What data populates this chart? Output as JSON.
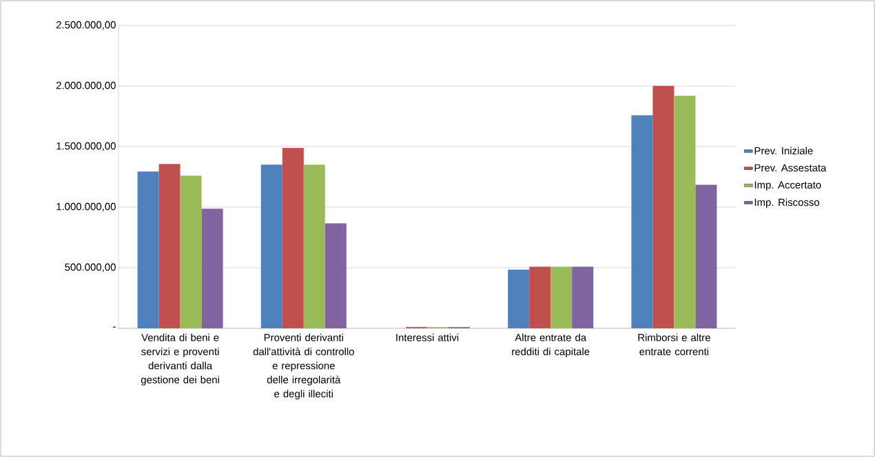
{
  "chart_data": {
    "type": "bar",
    "categories": [
      "Vendita di beni e servizi e proventi derivanti dalla gestione dei beni",
      "Proventi derivanti dall'attività di controllo e repressione delle irregolarità e degli illeciti",
      "Interessi attivi",
      "Altre entrate da redditi di capitale",
      "Rimborsi e altre entrate correnti"
    ],
    "series": [
      {
        "name": "Prev. Iniziale",
        "color": "#4f81bd",
        "values": [
          1294000,
          1351000,
          0,
          485000,
          1759000
        ]
      },
      {
        "name": "Prev. Assestata",
        "color": "#c0504d",
        "values": [
          1357000,
          1488000,
          10000,
          509000,
          2002000
        ]
      },
      {
        "name": "Imp. Accertato",
        "color": "#9bbb59",
        "values": [
          1260000,
          1351000,
          10000,
          509000,
          1919000
        ]
      },
      {
        "name": "Imp. Riscosso",
        "color": "#8064a2",
        "values": [
          987000,
          867000,
          10000,
          509000,
          1185000
        ]
      }
    ],
    "ylim": [
      0,
      2500000
    ],
    "yticks": [
      {
        "value": 0,
        "label": "-"
      },
      {
        "value": 500000,
        "label": "500.000,00"
      },
      {
        "value": 1000000,
        "label": "1.000.000,00"
      },
      {
        "value": 1500000,
        "label": "1.500.000,00"
      },
      {
        "value": 2000000,
        "label": "2.000.000,00"
      },
      {
        "value": 2500000,
        "label": "2.500.000,00"
      }
    ],
    "grid": "y",
    "legend": "right"
  }
}
